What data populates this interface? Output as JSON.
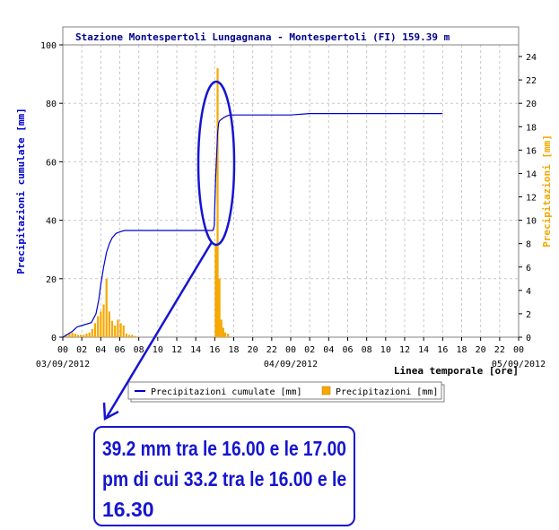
{
  "chart_data": {
    "type": "bar+line",
    "title": "Stazione Montespertoli Lungagnana - Montespertoli (FI) 159.39 m",
    "ylabel_left": "Precipitazioni cumulate [mm]",
    "ylabel_right": "Precipitazioni [mm]",
    "xlabel": "Linea temporale [ore]",
    "ylim_left": [
      0,
      100
    ],
    "ylim_right": [
      0,
      25
    ],
    "yticks_left": [
      "0",
      "20",
      "40",
      "60",
      "80",
      "100"
    ],
    "yticks_right": [
      "0",
      "2",
      "4",
      "6",
      "8",
      "10",
      "12",
      "14",
      "16",
      "18",
      "20",
      "22",
      "24"
    ],
    "xticks": [
      "00",
      "02",
      "04",
      "06",
      "08",
      "10",
      "12",
      "14",
      "16",
      "18",
      "20",
      "22",
      "00",
      "02",
      "04",
      "06",
      "08",
      "10",
      "12",
      "14",
      "16",
      "18",
      "20",
      "22",
      "00"
    ],
    "date_labels": [
      "03/09/2012",
      "04/09/2012",
      "05/09/2012"
    ],
    "grid": true,
    "colors": {
      "line": "#0000cc",
      "bar": "#f5a800",
      "right_axis": "#f5a800",
      "left_axis": "#0000cc"
    },
    "legend": [
      "Precipitazioni cumulate [mm]",
      "Precipitazioni [mm]"
    ],
    "legend_placement": "below-right",
    "series": [
      {
        "name": "Precipitazioni cumulate [mm]",
        "kind": "line",
        "axis": "left",
        "x": [
          0,
          0.5,
          1,
          1.5,
          2,
          3,
          3.5,
          3.8,
          4,
          4.3,
          4.6,
          4.9,
          5.2,
          5.6,
          6,
          6.5,
          7,
          8,
          10,
          12,
          14,
          15.8,
          15.95,
          16,
          16.1,
          16.2,
          16.3,
          16.4,
          16.5,
          16.7,
          17,
          17.3,
          17.6,
          18,
          20,
          24,
          26,
          30,
          40
        ],
        "values": [
          0,
          1,
          2,
          3.5,
          4,
          5,
          8,
          13,
          18,
          24,
          29,
          32,
          34,
          35.5,
          36,
          36.5,
          36.5,
          36.5,
          36.5,
          36.5,
          36.5,
          36.5,
          38,
          44,
          55,
          62,
          69.7,
          73,
          74,
          74.5,
          75.2,
          75.7,
          76,
          76,
          76,
          76,
          76.5,
          76.5,
          76.5
        ]
      },
      {
        "name": "Precipitazioni [mm]",
        "kind": "bar",
        "axis": "right",
        "x": [
          0.4,
          0.7,
          1,
          1.3,
          1.6,
          1.9,
          2.2,
          2.5,
          2.8,
          3.1,
          3.4,
          3.7,
          4.0,
          4.3,
          4.6,
          4.9,
          5.2,
          5.5,
          5.8,
          6.1,
          6.4,
          6.7,
          7.0,
          7.3,
          7.6,
          16.1,
          16.3,
          16.5,
          16.7,
          16.9,
          17.1,
          17.4
        ],
        "values": [
          0.2,
          0.3,
          0.4,
          0.3,
          0.2,
          0.2,
          0.2,
          0.3,
          0.4,
          0.7,
          1.2,
          1.8,
          2.2,
          2.8,
          5.0,
          2.2,
          1.4,
          1.0,
          1.5,
          1.2,
          1.0,
          0.3,
          0.2,
          0.2,
          0.1,
          8.0,
          23.0,
          5.0,
          1.5,
          0.8,
          0.4,
          0.3
        ]
      }
    ]
  },
  "annotation": {
    "lines": [
      "39.2 mm tra le 16.00 e le 17.00",
      "pm di cui 33.2 tra le 16.00 e le",
      "16.30"
    ]
  }
}
